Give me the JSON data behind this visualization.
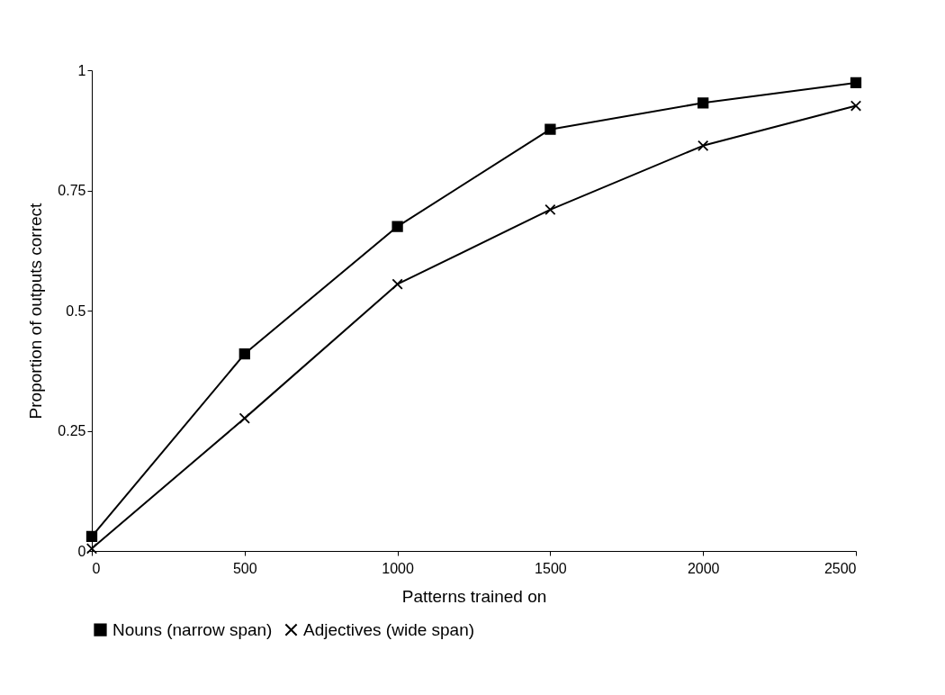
{
  "chart_data": {
    "type": "line",
    "xlabel": "Patterns trained on",
    "ylabel": "Proportion of outputs correct",
    "x": [
      0,
      500,
      1000,
      1500,
      2000,
      2500
    ],
    "xlim": [
      0,
      2500
    ],
    "xticks": [
      0,
      500,
      1000,
      1500,
      2000,
      2500
    ],
    "ylim": [
      0,
      1
    ],
    "yticks": [
      0,
      0.25,
      0.5,
      0.75,
      1
    ],
    "series": [
      {
        "name": "Nouns (narrow span)",
        "color": "#000000",
        "marker": "square",
        "values": [
          0.03,
          0.41,
          0.675,
          0.877,
          0.932,
          0.974
        ]
      },
      {
        "name": "Adjectives (wide span)",
        "color": "#000000",
        "marker": "cross",
        "values": [
          0.005,
          0.276,
          0.555,
          0.71,
          0.843,
          0.926
        ]
      }
    ],
    "grid": false,
    "legend": "bottom",
    "line_style": "solid"
  }
}
